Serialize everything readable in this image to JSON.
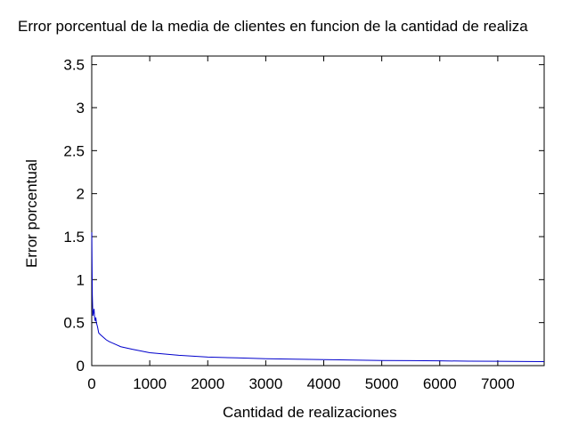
{
  "chart_data": {
    "type": "line",
    "title": "Error porcentual de la media de clientes en funcion de la cantidad de realiza",
    "xlabel": "Cantidad de realizaciones",
    "ylabel": "Error porcentual",
    "xlim": [
      0,
      7800
    ],
    "ylim": [
      0,
      3.6
    ],
    "xticks": [
      0,
      1000,
      2000,
      3000,
      4000,
      5000,
      6000,
      7000
    ],
    "yticks": [
      0,
      0.5,
      1,
      1.5,
      2,
      2.5,
      3,
      3.5
    ],
    "xticklabels": [
      "0",
      "1000",
      "2000",
      "3000",
      "4000",
      "5000",
      "6000",
      "7000"
    ],
    "yticklabels": [
      "0",
      "0.5",
      "1",
      "1.5",
      "2",
      "2.5",
      "3",
      "3.5"
    ],
    "grid": false,
    "series": [
      {
        "color": "#0000cc",
        "x": [
          1,
          5,
          10,
          15,
          20,
          30,
          40,
          50,
          60,
          70,
          80,
          100,
          120,
          150,
          200,
          250,
          300,
          400,
          500,
          700,
          1000,
          1500,
          2000,
          2500,
          3000,
          3500,
          4000,
          4500,
          5000,
          5500,
          6000,
          6500,
          7000,
          7500,
          7800
        ],
        "y": [
          1.55,
          1.2,
          0.82,
          0.7,
          0.58,
          0.62,
          0.66,
          0.55,
          0.52,
          0.56,
          0.5,
          0.45,
          0.38,
          0.36,
          0.33,
          0.3,
          0.28,
          0.25,
          0.22,
          0.19,
          0.15,
          0.12,
          0.1,
          0.09,
          0.08,
          0.075,
          0.07,
          0.065,
          0.06,
          0.058,
          0.055,
          0.052,
          0.05,
          0.048,
          0.047
        ]
      }
    ]
  }
}
